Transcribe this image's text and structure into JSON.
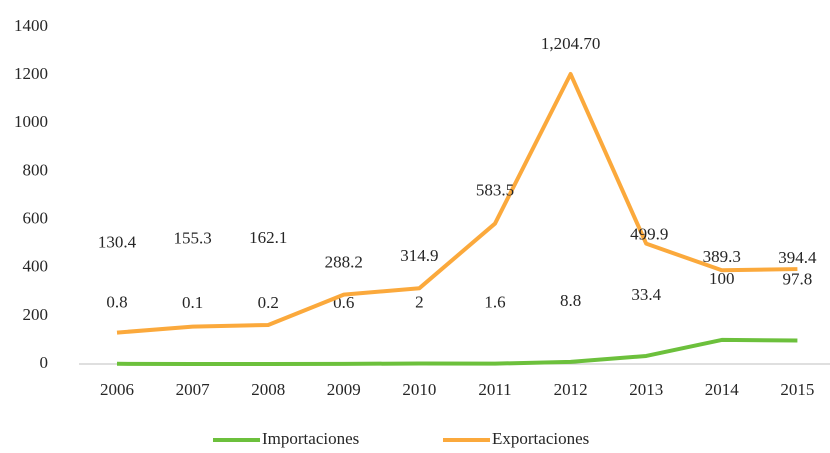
{
  "chart_data": {
    "type": "line",
    "categories": [
      "2006",
      "2007",
      "2008",
      "2009",
      "2010",
      "2011",
      "2012",
      "2013",
      "2014",
      "2015"
    ],
    "series": [
      {
        "name": "Importaciones",
        "color": "#6cc03c",
        "values": [
          0.8,
          0.1,
          0.2,
          0.6,
          2,
          1.6,
          8.8,
          33.4,
          100,
          97.8
        ]
      },
      {
        "name": "Exportaciones",
        "color": "#fba93c",
        "values": [
          130.4,
          155.3,
          162.1,
          288.2,
          314.9,
          583.5,
          1204.7,
          499.9,
          389.3,
          394.4
        ],
        "value_labels": [
          "130.4",
          "155.3",
          "162.1",
          "288.2",
          "314.9",
          "583.5",
          "1,204.70",
          "499.9",
          "389.3",
          "394.4"
        ]
      }
    ],
    "ylim": [
      0,
      1400
    ],
    "yticks": [
      0,
      200,
      400,
      600,
      800,
      1000,
      1200,
      1400
    ],
    "grid": false,
    "legend": "bottom"
  }
}
